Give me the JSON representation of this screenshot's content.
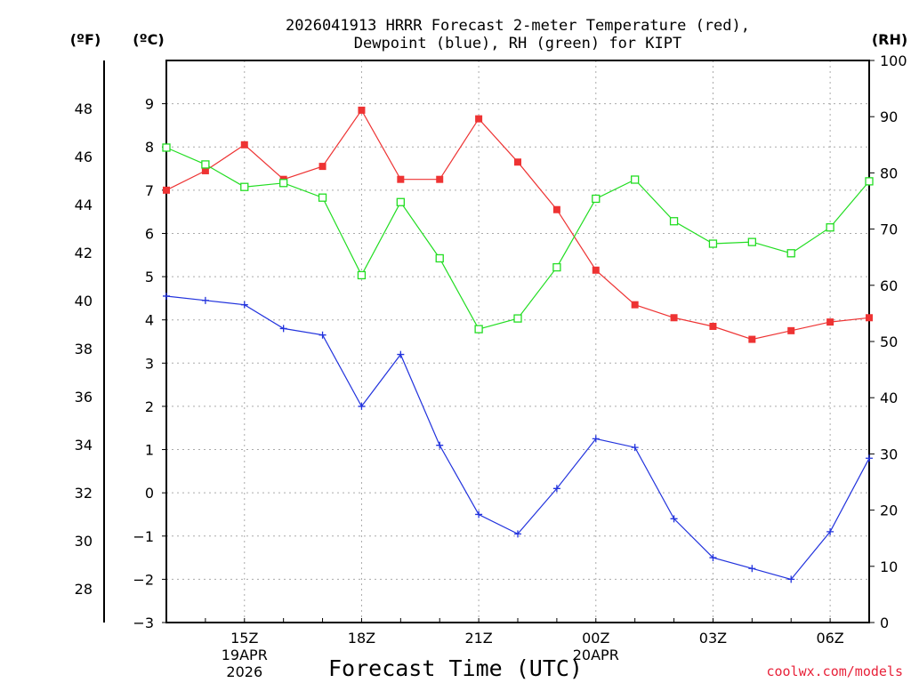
{
  "chart_data": {
    "type": "line",
    "title_line1": "2026041913 HRRR Forecast 2-meter Temperature (red),",
    "title_line2": "Dewpoint (blue), RH (green) for KIPT",
    "xlabel": "Forecast Time (UTC)",
    "credit": "coolwx.com/models",
    "units": {
      "fahrenheit": "(ºF)",
      "celsius": "(ºC)",
      "rh": "(RH)"
    },
    "x": [
      13,
      14,
      15,
      16,
      17,
      18,
      19,
      20,
      21,
      22,
      23,
      24,
      25,
      26,
      27,
      28,
      29,
      30,
      31
    ],
    "x_ticks": [
      {
        "x": 15,
        "label": "15Z",
        "sub1": "19APR",
        "sub2": "2026"
      },
      {
        "x": 18,
        "label": "18Z"
      },
      {
        "x": 21,
        "label": "21Z"
      },
      {
        "x": 24,
        "label": "00Z",
        "sub1": "20APR"
      },
      {
        "x": 27,
        "label": "03Z"
      },
      {
        "x": 30,
        "label": "06Z"
      }
    ],
    "y_celsius_range": [
      -3,
      10
    ],
    "y_celsius_ticks": [
      -3,
      -2,
      -1,
      0,
      1,
      2,
      3,
      4,
      5,
      6,
      7,
      8,
      9
    ],
    "y_fahrenheit_ticks": [
      28,
      30,
      32,
      34,
      36,
      38,
      40,
      42,
      44,
      46,
      48
    ],
    "y_rh_range": [
      0,
      100
    ],
    "y_rh_ticks": [
      0,
      10,
      20,
      30,
      40,
      50,
      60,
      70,
      80,
      90,
      100
    ],
    "grid": true,
    "series": [
      {
        "name": "Temperature",
        "unit": "C",
        "color": "#ee3333",
        "marker": "filled-square",
        "values": [
          7.0,
          7.45,
          8.05,
          7.25,
          7.55,
          8.85,
          7.25,
          7.25,
          8.65,
          7.65,
          6.55,
          5.15,
          4.35,
          4.05,
          3.85,
          3.55,
          3.75,
          3.95,
          4.05
        ]
      },
      {
        "name": "Dewpoint",
        "unit": "C",
        "color": "#2233dd",
        "marker": "plus",
        "values": [
          4.55,
          4.45,
          4.35,
          3.8,
          3.65,
          2.0,
          3.2,
          1.1,
          -0.5,
          -0.95,
          0.1,
          1.25,
          1.05,
          -0.6,
          -1.5,
          -1.75,
          -2.0,
          -0.9,
          0.8
        ]
      },
      {
        "name": "RH",
        "unit": "%",
        "color": "#22dd22",
        "marker": "open-square",
        "values": [
          84.5,
          81.5,
          77.5,
          78.2,
          75.6,
          61.8,
          74.8,
          64.8,
          52.2,
          54.1,
          63.2,
          75.4,
          78.8,
          71.4,
          67.4,
          67.7,
          65.7,
          70.3,
          78.5
        ]
      }
    ]
  }
}
